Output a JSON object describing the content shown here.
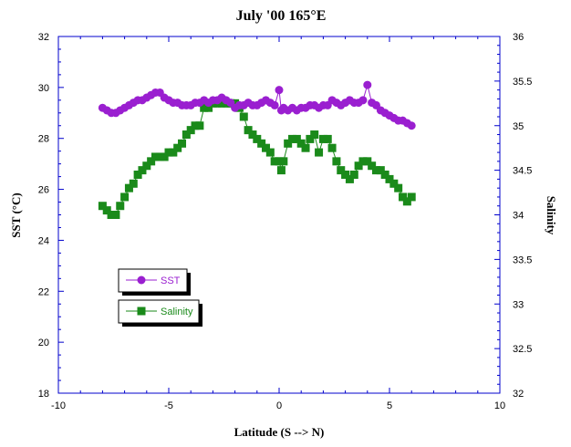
{
  "chart_data": {
    "type": "scatter",
    "title": "July '00 165°E",
    "xlabel": "Latitude (S --> N)",
    "ylabel": "SST (°C)",
    "y2label": "Salinity",
    "xlim": [
      -10,
      10
    ],
    "ylim": [
      18,
      32
    ],
    "y2lim": [
      32,
      36
    ],
    "xticks": [
      "-10",
      "-5",
      "0",
      "5",
      "10"
    ],
    "yticks": [
      "18",
      "20",
      "22",
      "24",
      "26",
      "28",
      "30",
      "32"
    ],
    "y2ticks": [
      "32",
      "32.5",
      "33",
      "33.5",
      "34",
      "34.5",
      "35",
      "35.5",
      "36"
    ],
    "grid": false,
    "legend_placement": "lower-left",
    "series": [
      {
        "name": "SST",
        "axis": "left",
        "color": "#9a1fd0",
        "marker": "circle",
        "x": [
          -8.0,
          -7.8,
          -7.6,
          -7.4,
          -7.2,
          -7.0,
          -6.8,
          -6.6,
          -6.4,
          -6.2,
          -6.0,
          -5.8,
          -5.6,
          -5.4,
          -5.2,
          -5.0,
          -4.8,
          -4.6,
          -4.4,
          -4.2,
          -4.0,
          -3.8,
          -3.6,
          -3.4,
          -3.2,
          -3.0,
          -2.8,
          -2.6,
          -2.4,
          -2.2,
          -2.0,
          -1.8,
          -1.6,
          -1.4,
          -1.2,
          -1.0,
          -0.8,
          -0.6,
          -0.4,
          -0.2,
          0.0,
          0.1,
          0.2,
          0.4,
          0.6,
          0.8,
          1.0,
          1.2,
          1.4,
          1.6,
          1.8,
          2.0,
          2.2,
          2.4,
          2.6,
          2.8,
          3.0,
          3.2,
          3.4,
          3.6,
          3.8,
          4.0,
          4.2,
          4.4,
          4.6,
          4.8,
          5.0,
          5.2,
          5.4,
          5.6,
          5.8,
          6.0
        ],
        "values": [
          29.2,
          29.1,
          29.0,
          29.0,
          29.1,
          29.2,
          29.3,
          29.4,
          29.5,
          29.5,
          29.6,
          29.7,
          29.8,
          29.8,
          29.6,
          29.5,
          29.4,
          29.4,
          29.3,
          29.3,
          29.3,
          29.4,
          29.4,
          29.5,
          29.4,
          29.5,
          29.5,
          29.6,
          29.5,
          29.4,
          29.2,
          29.3,
          29.3,
          29.4,
          29.3,
          29.3,
          29.4,
          29.5,
          29.4,
          29.3,
          29.9,
          29.1,
          29.2,
          29.1,
          29.2,
          29.1,
          29.2,
          29.2,
          29.3,
          29.3,
          29.2,
          29.3,
          29.3,
          29.5,
          29.4,
          29.3,
          29.4,
          29.5,
          29.4,
          29.4,
          29.5,
          30.1,
          29.4,
          29.3,
          29.1,
          29.0,
          28.9,
          28.8,
          28.7,
          28.7,
          28.6,
          28.5
        ]
      },
      {
        "name": "Salinity",
        "axis": "right",
        "color": "#1a8a1a",
        "marker": "square",
        "x": [
          -8.0,
          -7.8,
          -7.6,
          -7.4,
          -7.2,
          -7.0,
          -6.8,
          -6.6,
          -6.4,
          -6.2,
          -6.0,
          -5.8,
          -5.6,
          -5.4,
          -5.2,
          -5.0,
          -4.8,
          -4.6,
          -4.4,
          -4.2,
          -4.0,
          -3.8,
          -3.6,
          -3.4,
          -3.2,
          -3.0,
          -2.8,
          -2.6,
          -2.4,
          -2.2,
          -2.0,
          -1.8,
          -1.6,
          -1.4,
          -1.2,
          -1.0,
          -0.8,
          -0.6,
          -0.4,
          -0.2,
          0.0,
          0.1,
          0.2,
          0.4,
          0.6,
          0.8,
          1.0,
          1.2,
          1.4,
          1.6,
          1.8,
          2.0,
          2.2,
          2.4,
          2.6,
          2.8,
          3.0,
          3.2,
          3.4,
          3.6,
          3.8,
          4.0,
          4.2,
          4.4,
          4.6,
          4.8,
          5.0,
          5.2,
          5.4,
          5.6,
          5.8,
          6.0
        ],
        "values": [
          34.1,
          34.05,
          34.0,
          34.0,
          34.1,
          34.2,
          34.3,
          34.35,
          34.45,
          34.5,
          34.55,
          34.6,
          34.65,
          34.65,
          34.65,
          34.7,
          34.7,
          34.75,
          34.8,
          34.9,
          34.95,
          35.0,
          35.0,
          35.2,
          35.2,
          35.25,
          35.25,
          35.25,
          35.25,
          35.25,
          35.25,
          35.2,
          35.1,
          34.95,
          34.9,
          34.85,
          34.8,
          34.75,
          34.7,
          34.6,
          34.6,
          34.5,
          34.6,
          34.8,
          34.85,
          34.85,
          34.8,
          34.75,
          34.85,
          34.9,
          34.7,
          34.85,
          34.85,
          34.75,
          34.6,
          34.5,
          34.45,
          34.4,
          34.45,
          34.55,
          34.6,
          34.6,
          34.55,
          34.5,
          34.5,
          34.45,
          34.4,
          34.35,
          34.3,
          34.2,
          34.15,
          34.2
        ]
      }
    ]
  }
}
